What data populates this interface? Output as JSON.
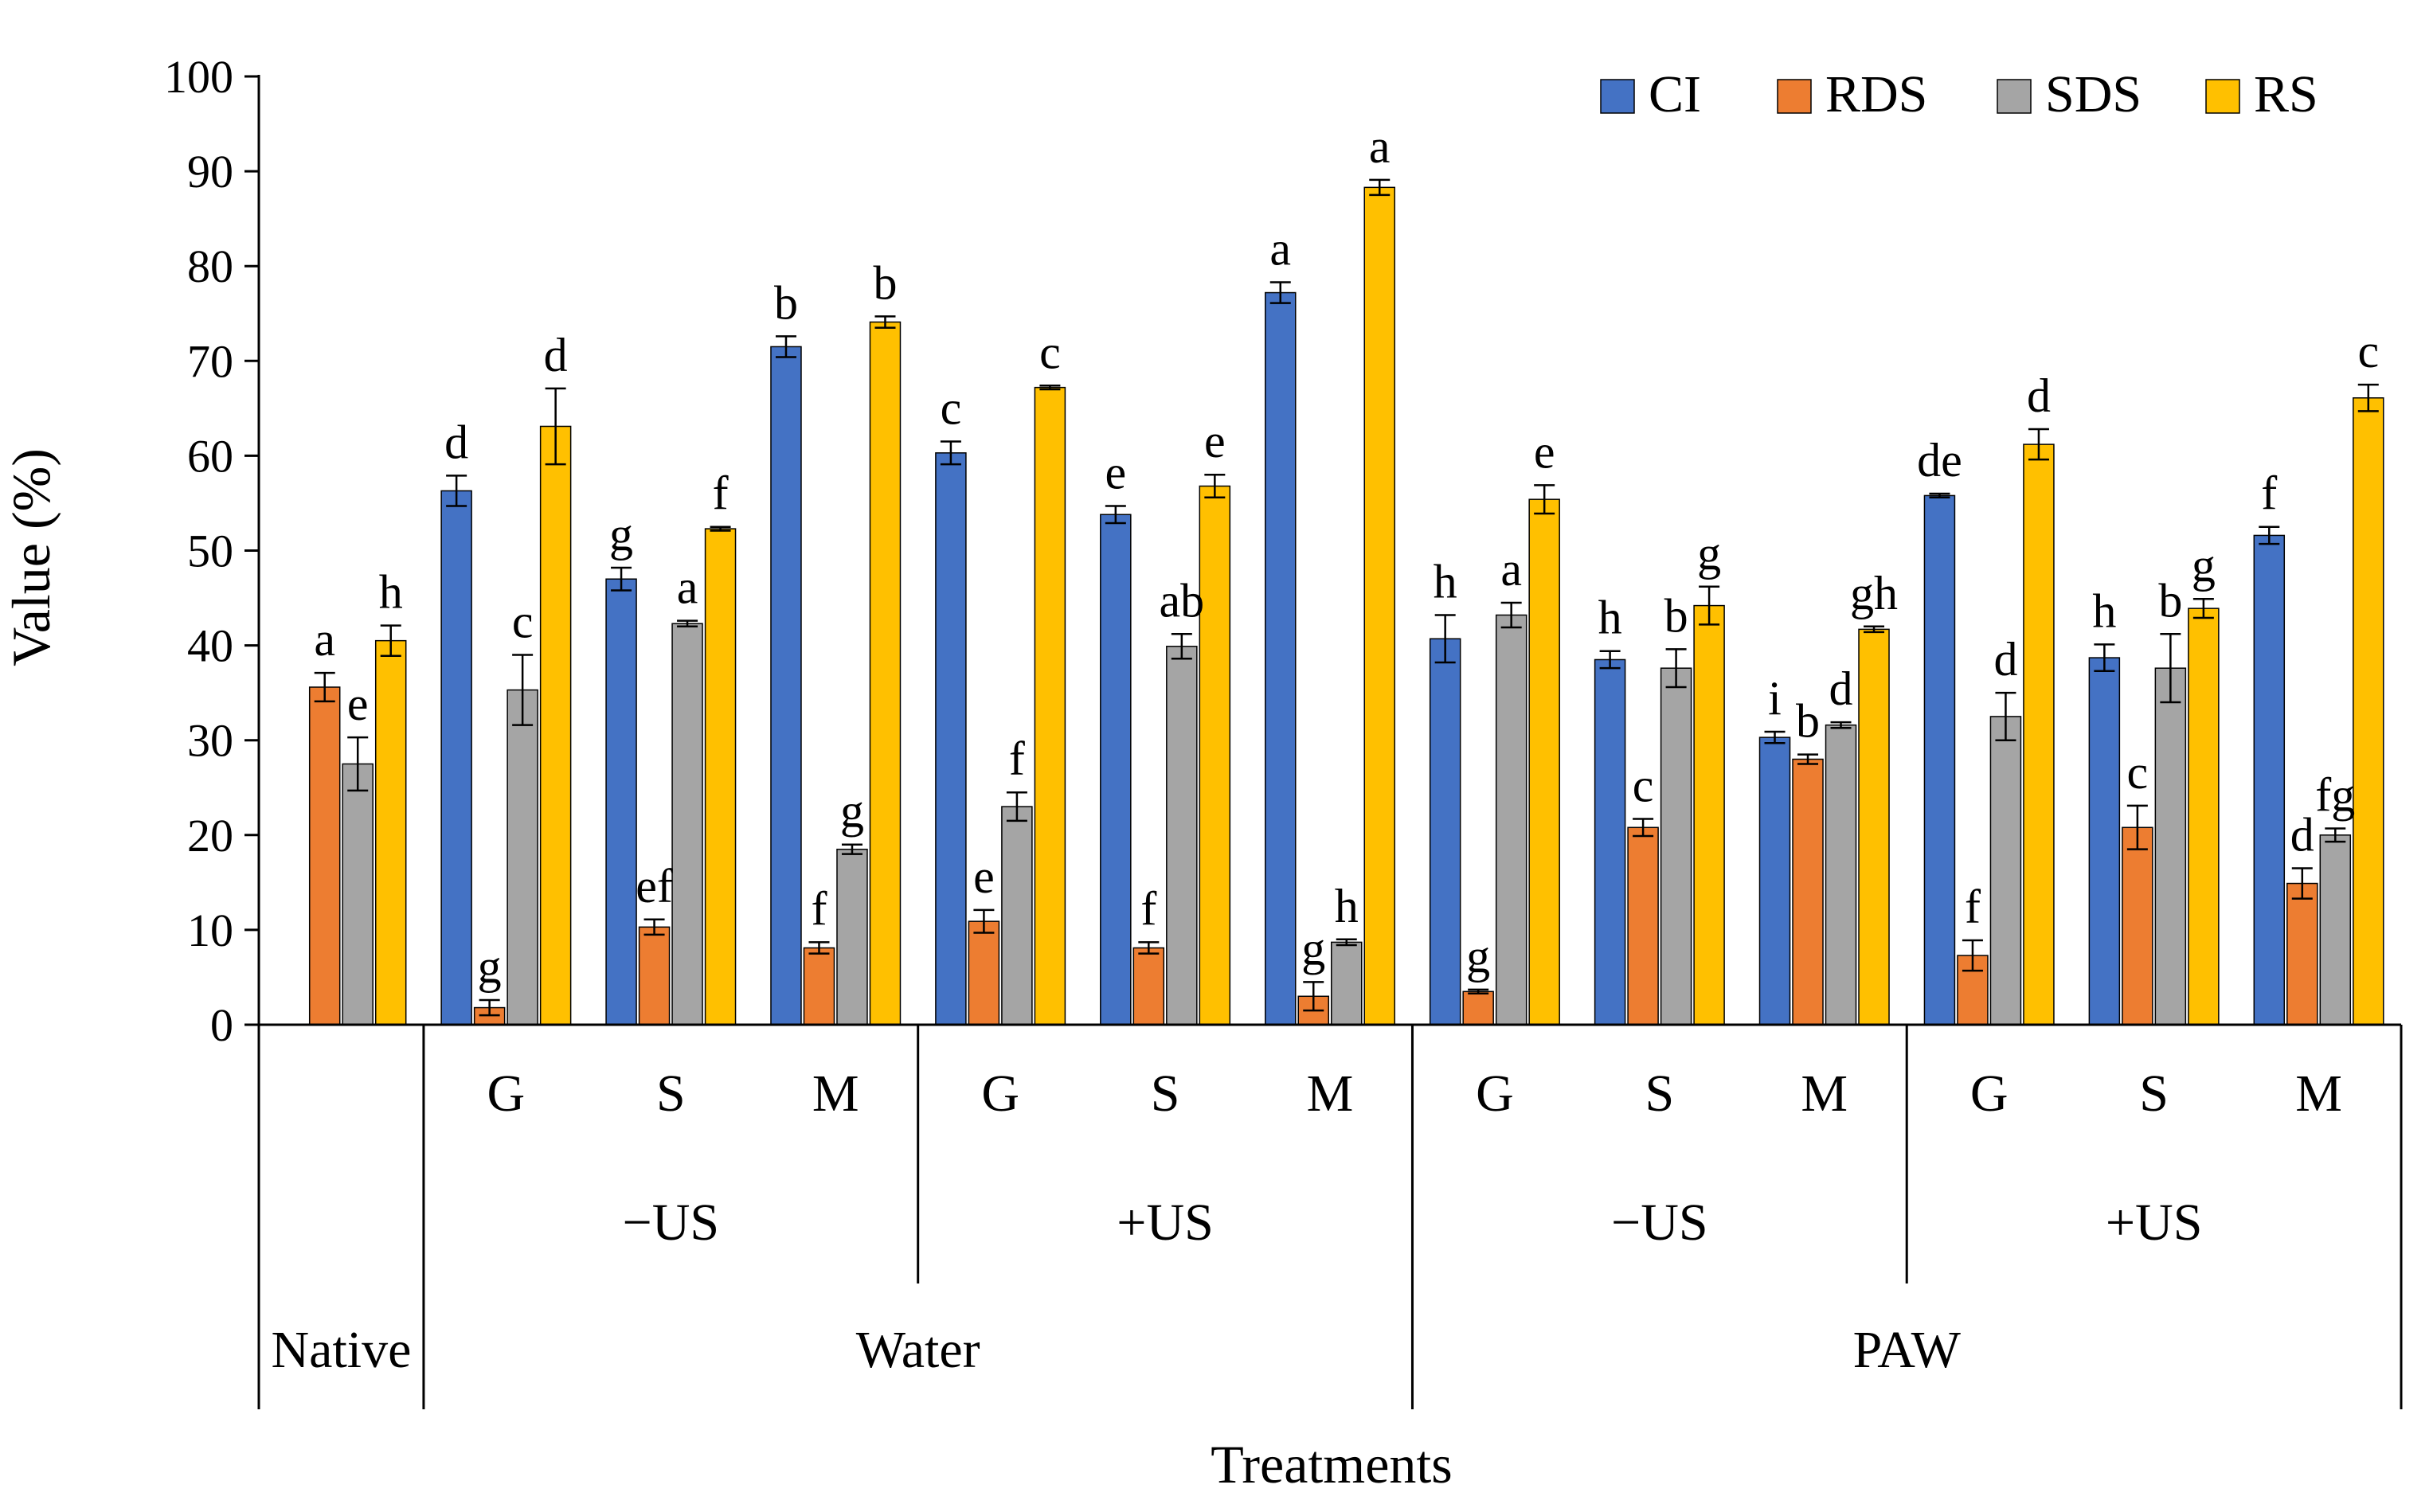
{
  "chart_data": {
    "type": "bar",
    "title": "",
    "xlabel": "Treatments",
    "ylabel": "Value (%)",
    "ylim": [
      0,
      100
    ],
    "yticks": [
      0,
      10,
      20,
      30,
      40,
      50,
      60,
      70,
      80,
      90,
      100
    ],
    "grid": false,
    "legend_position": "top-right",
    "groups": [
      {
        "label": "",
        "subgroup": "",
        "group": "Native"
      },
      {
        "label": "G",
        "subgroup": "−US",
        "group": "Water"
      },
      {
        "label": "S",
        "subgroup": "−US",
        "group": "Water"
      },
      {
        "label": "M",
        "subgroup": "−US",
        "group": "Water"
      },
      {
        "label": "G",
        "subgroup": "+US",
        "group": "Water"
      },
      {
        "label": "S",
        "subgroup": "+US",
        "group": "Water"
      },
      {
        "label": "M",
        "subgroup": "+US",
        "group": "Water"
      },
      {
        "label": "G",
        "subgroup": "−US",
        "group": "PAW"
      },
      {
        "label": "S",
        "subgroup": "−US",
        "group": "PAW"
      },
      {
        "label": "M",
        "subgroup": "−US",
        "group": "PAW"
      },
      {
        "label": "G",
        "subgroup": "+US",
        "group": "PAW"
      },
      {
        "label": "S",
        "subgroup": "+US",
        "group": "PAW"
      },
      {
        "label": "M",
        "subgroup": "+US",
        "group": "PAW"
      }
    ],
    "subgroup_labels": [
      {
        "label": "−US",
        "from": 1,
        "to": 3
      },
      {
        "label": "+US",
        "from": 4,
        "to": 6
      },
      {
        "label": "−US",
        "from": 7,
        "to": 9
      },
      {
        "label": "+US",
        "from": 10,
        "to": 12
      }
    ],
    "group_labels": [
      {
        "label": "Native",
        "from": 0,
        "to": 0
      },
      {
        "label": "Water",
        "from": 1,
        "to": 6
      },
      {
        "label": "PAW",
        "from": 7,
        "to": 12
      }
    ],
    "series": [
      {
        "name": "CI",
        "color": "#4472C4",
        "values": [
          null,
          56.3,
          47.0,
          71.5,
          60.3,
          53.8,
          77.2,
          40.7,
          38.5,
          30.3,
          55.8,
          38.7,
          51.6
        ],
        "errors": [
          0,
          1.6,
          1.2,
          1.1,
          1.2,
          0.9,
          1.1,
          2.5,
          0.9,
          0.6,
          0.2,
          1.4,
          0.9
        ],
        "letters": [
          "",
          "d",
          "g",
          "b",
          "c",
          "e",
          "a",
          "h",
          "h",
          "i",
          "de",
          "h",
          "f"
        ]
      },
      {
        "name": "RDS",
        "color": "#ED7D31",
        "values": [
          35.6,
          1.8,
          10.3,
          8.1,
          10.9,
          8.1,
          3.0,
          3.5,
          20.8,
          28.0,
          7.3,
          20.8,
          14.9
        ],
        "errors": [
          1.5,
          0.8,
          0.8,
          0.6,
          1.2,
          0.6,
          1.5,
          0.2,
          0.9,
          0.5,
          1.6,
          2.3,
          1.6
        ],
        "letters": [
          "a",
          "g",
          "ef",
          "f",
          "e",
          "f",
          "g",
          "g",
          "c",
          "b",
          "f",
          "c",
          "d"
        ]
      },
      {
        "name": "SDS",
        "color": "#A5A5A5",
        "values": [
          27.5,
          35.3,
          42.3,
          18.5,
          23.0,
          39.9,
          8.7,
          43.2,
          37.6,
          31.6,
          32.5,
          37.6,
          20.0
        ],
        "errors": [
          2.8,
          3.7,
          0.3,
          0.5,
          1.5,
          1.3,
          0.3,
          1.3,
          2.0,
          0.3,
          2.5,
          3.6,
          0.7
        ],
        "letters": [
          "e",
          "c",
          "a",
          "g",
          "f",
          "ab",
          "h",
          "a",
          "b",
          "d",
          "d",
          "b",
          "fg"
        ]
      },
      {
        "name": "RS",
        "color": "#FFC000",
        "values": [
          40.5,
          63.1,
          52.3,
          74.1,
          67.2,
          56.8,
          88.3,
          55.4,
          44.2,
          41.7,
          61.2,
          43.9,
          66.1
        ],
        "errors": [
          1.6,
          4.0,
          0.2,
          0.6,
          0.2,
          1.2,
          0.8,
          1.5,
          2.0,
          0.3,
          1.6,
          1.0,
          1.4
        ],
        "letters": [
          "h",
          "d",
          "f",
          "b",
          "c",
          "e",
          "a",
          "e",
          "g",
          "gh",
          "d",
          "g",
          "c"
        ]
      }
    ]
  }
}
